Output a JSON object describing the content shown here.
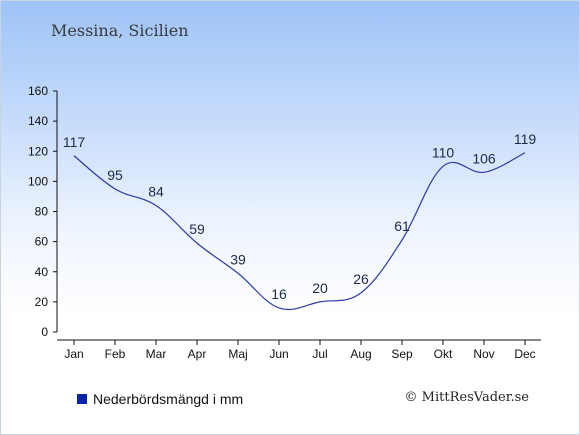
{
  "header": {
    "title": "Messina, Sicilien"
  },
  "legend": {
    "label": "Nederbördsmängd i mm",
    "swatch_color": "#0a24a8"
  },
  "footer": {
    "copyright": "© MittResVader.se"
  },
  "colors": {
    "line": "#2b3aa8",
    "axis": "#111111",
    "label": "#1c2b4a"
  },
  "chart_data": {
    "type": "line",
    "categories": [
      "Jan",
      "Feb",
      "Mar",
      "Apr",
      "Maj",
      "Jun",
      "Jul",
      "Aug",
      "Sep",
      "Okt",
      "Nov",
      "Dec"
    ],
    "series": [
      {
        "values": [
          117,
          95,
          84,
          59,
          39,
          16,
          20,
          26,
          61,
          110,
          106,
          119
        ]
      }
    ],
    "ylim": [
      0,
      160
    ],
    "yticks": [
      0,
      20,
      40,
      60,
      80,
      100,
      120,
      140,
      160
    ],
    "grid": false,
    "legend_position": "bottom-left",
    "data_labels": true
  }
}
